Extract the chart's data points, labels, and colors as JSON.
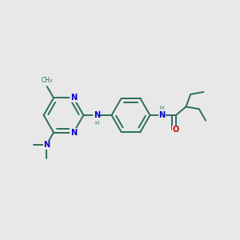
{
  "bg_color": "#e8e8e8",
  "bond_color": "#2d6e5e",
  "n_color": "#0000cc",
  "o_color": "#cc0000",
  "font_size": 7.0,
  "bond_width": 1.4,
  "dbo": 0.015,
  "figsize": [
    3.0,
    3.0
  ],
  "dpi": 100,
  "xlim": [
    0.0,
    1.0
  ],
  "ylim": [
    0.0,
    1.0
  ]
}
